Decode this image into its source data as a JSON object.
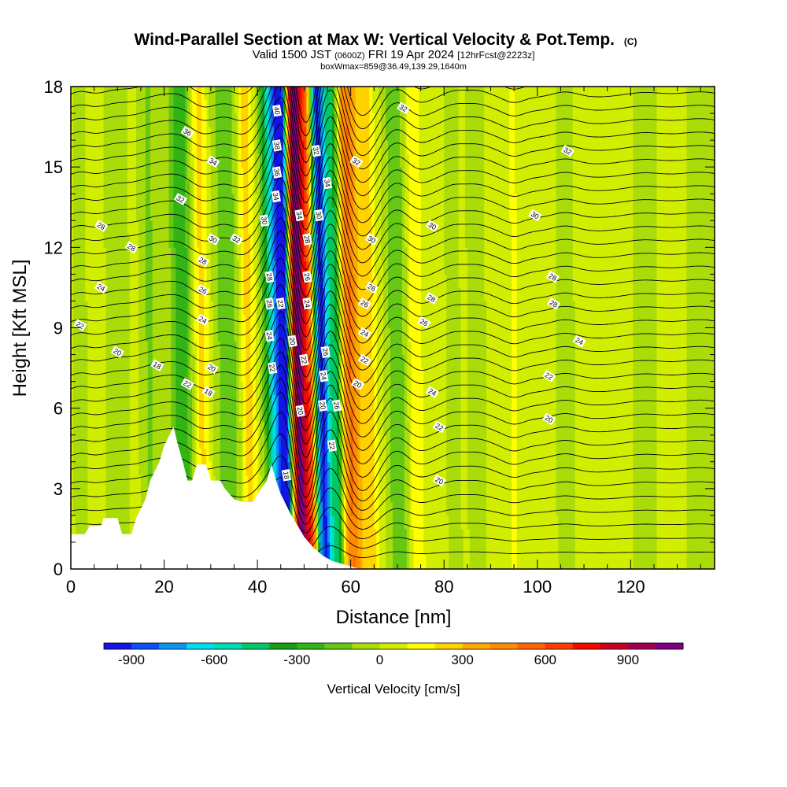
{
  "chart_data": {
    "type": "heatmap",
    "title": "Wind-Parallel Section at Max W: Vertical Velocity & Pot.Temp.",
    "title_mark": "(C)",
    "subtitle": {
      "valid_prefix": "Valid 1500 JST",
      "utc": "(0600Z)",
      "date": "FRI 19 Apr 2024",
      "forecast": "[12hrFcst@2223z]"
    },
    "subtitle2": "boxWmax=859@36.49,139.29,1640m",
    "xlabel": "Distance [nm]",
    "ylabel": "Height [Kft MSL]",
    "xlim": [
      0,
      138
    ],
    "ylim": [
      0,
      18
    ],
    "xticks": [
      "0",
      "20",
      "40",
      "60",
      "80",
      "100",
      "120"
    ],
    "yticks": [
      "0",
      "3",
      "6",
      "9",
      "12",
      "15",
      "18"
    ],
    "colorbar": {
      "label": "Vertical Velocity [cm/s]",
      "ticks": [
        "-900",
        "-600",
        "-300",
        "0",
        "300",
        "600",
        "900"
      ],
      "levels": [
        -1000,
        -900,
        -800,
        -700,
        -600,
        -500,
        -400,
        -300,
        -200,
        -100,
        0,
        100,
        200,
        300,
        400,
        500,
        600,
        700,
        800,
        900,
        1000,
        1100
      ],
      "colors": [
        "#1414e6",
        "#0a50f0",
        "#0a96f0",
        "#00dcf0",
        "#00dcb4",
        "#00c864",
        "#14a014",
        "#32b414",
        "#64c814",
        "#aadc0a",
        "#d2ee00",
        "#ffff00",
        "#ffd200",
        "#ffaa00",
        "#ff8c00",
        "#ff6400",
        "#ff3c00",
        "#f00a00",
        "#c8001e",
        "#a00050",
        "#7d0080"
      ]
    },
    "vertical_velocity_bands": [
      {
        "x": 2,
        "halfwidth": 1.2,
        "w": -90
      },
      {
        "x": 10,
        "halfwidth": 2.0,
        "w": -120
      },
      {
        "x": 17,
        "halfwidth": 1.8,
        "w": -140
      },
      {
        "x": 24,
        "halfwidth": 2.5,
        "w": -300
      },
      {
        "x": 28,
        "halfwidth": 1.8,
        "w": 220
      },
      {
        "x": 34,
        "halfwidth": 3.0,
        "w": -200
      },
      {
        "x": 38,
        "halfwidth": 1.8,
        "w": 240
      },
      {
        "x": 44,
        "halfwidth": 2.2,
        "w": -700
      },
      {
        "x": 46,
        "halfwidth": 1.2,
        "w": -1000
      },
      {
        "x": 49,
        "halfwidth": 1.8,
        "w": 1050
      },
      {
        "x": 51.5,
        "halfwidth": 1.1,
        "w": 500
      },
      {
        "x": 54,
        "halfwidth": 1.8,
        "w": -950
      },
      {
        "x": 57,
        "halfwidth": 1.3,
        "w": -450
      },
      {
        "x": 60,
        "halfwidth": 2.3,
        "w": 480
      },
      {
        "x": 64,
        "halfwidth": 1.6,
        "w": 230
      },
      {
        "x": 70,
        "halfwidth": 2.0,
        "w": -220
      },
      {
        "x": 74,
        "halfwidth": 1.5,
        "w": 170
      },
      {
        "x": 82,
        "halfwidth": 1.3,
        "w": -90
      },
      {
        "x": 87,
        "halfwidth": 1.6,
        "w": -110
      },
      {
        "x": 95,
        "halfwidth": 1.2,
        "w": 90
      },
      {
        "x": 106,
        "halfwidth": 1.6,
        "w": -90
      },
      {
        "x": 123,
        "halfwidth": 2.5,
        "w": -80
      },
      {
        "x": 135,
        "halfwidth": 2.5,
        "w": -90
      }
    ],
    "terrain": {
      "x": [
        0,
        3,
        4,
        6.5,
        7,
        10,
        11,
        13,
        14,
        16,
        17,
        19,
        20,
        22,
        23,
        24,
        25,
        26,
        27,
        29,
        30,
        32,
        33,
        35,
        37,
        39,
        40,
        42,
        43,
        44,
        45,
        47,
        49,
        50,
        52,
        54,
        56,
        58,
        60,
        62
      ],
      "height_kft": [
        1.3,
        1.3,
        1.6,
        1.6,
        1.9,
        1.9,
        1.3,
        1.3,
        1.9,
        2.6,
        3.3,
        4.0,
        4.6,
        5.3,
        4.6,
        4.0,
        3.3,
        3.3,
        3.9,
        3.9,
        3.3,
        3.3,
        3.0,
        2.6,
        2.5,
        2.5,
        2.8,
        3.3,
        3.9,
        3.3,
        2.8,
        2.1,
        1.5,
        1.2,
        0.8,
        0.5,
        0.3,
        0.2,
        0.1,
        0
      ]
    },
    "theta_contours": {
      "levels": [
        18,
        20,
        22,
        24,
        26,
        28,
        30,
        32,
        34,
        36,
        38,
        40
      ],
      "labels": [
        {
          "text": "40",
          "x": 44.2,
          "y": 17.1
        },
        {
          "text": "38",
          "x": 44.2,
          "y": 15.8
        },
        {
          "text": "36",
          "x": 44.2,
          "y": 14.8
        },
        {
          "text": "34",
          "x": 44.0,
          "y": 13.9
        },
        {
          "text": "34",
          "x": 49.0,
          "y": 13.2
        },
        {
          "text": "32",
          "x": 52.6,
          "y": 15.6
        },
        {
          "text": "34",
          "x": 55.0,
          "y": 14.4
        },
        {
          "text": "32",
          "x": 61.2,
          "y": 15.2
        },
        {
          "text": "32",
          "x": 71.3,
          "y": 17.2
        },
        {
          "text": "32",
          "x": 106.5,
          "y": 15.6
        },
        {
          "text": "36",
          "x": 25.0,
          "y": 16.3
        },
        {
          "text": "34",
          "x": 30.5,
          "y": 15.2
        },
        {
          "text": "32",
          "x": 23.5,
          "y": 13.8
        },
        {
          "text": "32",
          "x": 35.5,
          "y": 12.3
        },
        {
          "text": "30",
          "x": 30.5,
          "y": 12.3
        },
        {
          "text": "30",
          "x": 41.5,
          "y": 13.0
        },
        {
          "text": "30",
          "x": 53.2,
          "y": 13.2
        },
        {
          "text": "30",
          "x": 64.5,
          "y": 12.3
        },
        {
          "text": "30",
          "x": 77.5,
          "y": 12.8
        },
        {
          "text": "30",
          "x": 99.5,
          "y": 13.2
        },
        {
          "text": "28",
          "x": 6.5,
          "y": 12.8
        },
        {
          "text": "28",
          "x": 13.0,
          "y": 12.0
        },
        {
          "text": "28",
          "x": 28.3,
          "y": 11.5
        },
        {
          "text": "28",
          "x": 50.7,
          "y": 12.3
        },
        {
          "text": "28",
          "x": 42.6,
          "y": 10.9
        },
        {
          "text": "28",
          "x": 103.3,
          "y": 10.9
        },
        {
          "text": "28",
          "x": 77.3,
          "y": 10.1
        },
        {
          "text": "28",
          "x": 103.5,
          "y": 9.9
        },
        {
          "text": "26",
          "x": 28.3,
          "y": 10.4
        },
        {
          "text": "26",
          "x": 50.7,
          "y": 10.9
        },
        {
          "text": "26",
          "x": 42.6,
          "y": 9.9
        },
        {
          "text": "26",
          "x": 63.0,
          "y": 9.9
        },
        {
          "text": "26",
          "x": 64.5,
          "y": 10.5
        },
        {
          "text": "26",
          "x": 54.6,
          "y": 8.1
        },
        {
          "text": "26",
          "x": 75.7,
          "y": 9.2
        },
        {
          "text": "24",
          "x": 6.5,
          "y": 10.5
        },
        {
          "text": "24",
          "x": 28.3,
          "y": 9.3
        },
        {
          "text": "24",
          "x": 50.7,
          "y": 9.9
        },
        {
          "text": "24",
          "x": 42.6,
          "y": 8.7
        },
        {
          "text": "24",
          "x": 63.0,
          "y": 8.8
        },
        {
          "text": "24",
          "x": 109.0,
          "y": 8.5
        },
        {
          "text": "24",
          "x": 54.2,
          "y": 7.2
        },
        {
          "text": "24",
          "x": 77.5,
          "y": 6.6
        },
        {
          "text": "22",
          "x": 2.0,
          "y": 9.1
        },
        {
          "text": "22",
          "x": 45.0,
          "y": 9.9
        },
        {
          "text": "22",
          "x": 50.0,
          "y": 7.8
        },
        {
          "text": "22",
          "x": 63.0,
          "y": 7.8
        },
        {
          "text": "22",
          "x": 43.2,
          "y": 7.5
        },
        {
          "text": "22",
          "x": 25.0,
          "y": 6.9
        },
        {
          "text": "22",
          "x": 56.0,
          "y": 4.6
        },
        {
          "text": "22",
          "x": 79.0,
          "y": 5.3
        },
        {
          "text": "22",
          "x": 102.5,
          "y": 7.2
        },
        {
          "text": "20",
          "x": 10.0,
          "y": 8.1
        },
        {
          "text": "20",
          "x": 30.2,
          "y": 7.5
        },
        {
          "text": "20",
          "x": 47.5,
          "y": 8.5
        },
        {
          "text": "20",
          "x": 61.5,
          "y": 6.9
        },
        {
          "text": "20",
          "x": 54.0,
          "y": 6.1
        },
        {
          "text": "20",
          "x": 49.2,
          "y": 5.9
        },
        {
          "text": "20",
          "x": 79.0,
          "y": 3.3
        },
        {
          "text": "20",
          "x": 102.5,
          "y": 5.6
        },
        {
          "text": "18",
          "x": 18.5,
          "y": 7.6
        },
        {
          "text": "18",
          "x": 29.5,
          "y": 6.6
        },
        {
          "text": "18",
          "x": 46.2,
          "y": 3.5
        },
        {
          "text": "26",
          "x": 57.0,
          "y": 6.1
        }
      ]
    },
    "grid": false
  }
}
